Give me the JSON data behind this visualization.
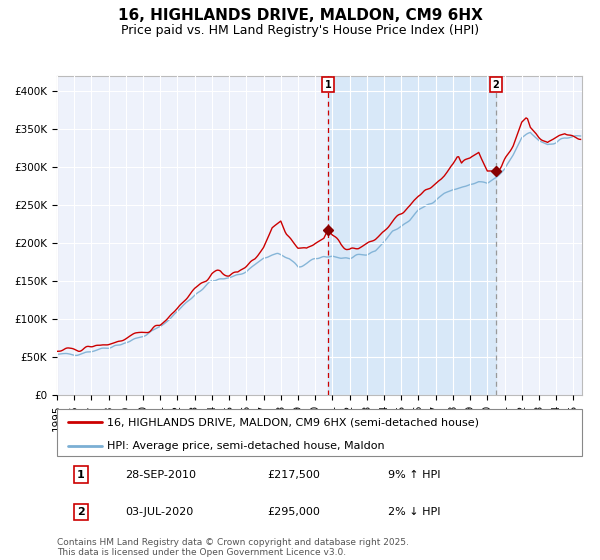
{
  "title": "16, HIGHLANDS DRIVE, MALDON, CM9 6HX",
  "subtitle": "Price paid vs. HM Land Registry's House Price Index (HPI)",
  "ylim": [
    0,
    420000
  ],
  "yticks": [
    0,
    50000,
    100000,
    150000,
    200000,
    250000,
    300000,
    350000,
    400000
  ],
  "ytick_labels": [
    "£0",
    "£50K",
    "£100K",
    "£150K",
    "£200K",
    "£250K",
    "£300K",
    "£350K",
    "£400K"
  ],
  "line1_color": "#cc0000",
  "line2_color": "#7bafd4",
  "shade_color": "#d8e8f8",
  "marker_color": "#880000",
  "vline1_color": "#cc0000",
  "vline2_color": "#999999",
  "sale1_date_num": 2010.75,
  "sale1_price": 217500,
  "sale2_date_num": 2020.5,
  "sale2_price": 295000,
  "legend_line1": "16, HIGHLANDS DRIVE, MALDON, CM9 6HX (semi-detached house)",
  "legend_line2": "HPI: Average price, semi-detached house, Maldon",
  "table_row1": [
    "1",
    "28-SEP-2010",
    "£217,500",
    "9% ↑ HPI"
  ],
  "table_row2": [
    "2",
    "03-JUL-2020",
    "£295,000",
    "2% ↓ HPI"
  ],
  "footer": "Contains HM Land Registry data © Crown copyright and database right 2025.\nThis data is licensed under the Open Government Licence v3.0.",
  "bg_color": "#ffffff",
  "plot_bg_color": "#eef2fb",
  "grid_color": "#ffffff",
  "title_fontsize": 11,
  "subtitle_fontsize": 9,
  "tick_fontsize": 7.5,
  "legend_fontsize": 8,
  "table_fontsize": 8,
  "footer_fontsize": 6.5
}
